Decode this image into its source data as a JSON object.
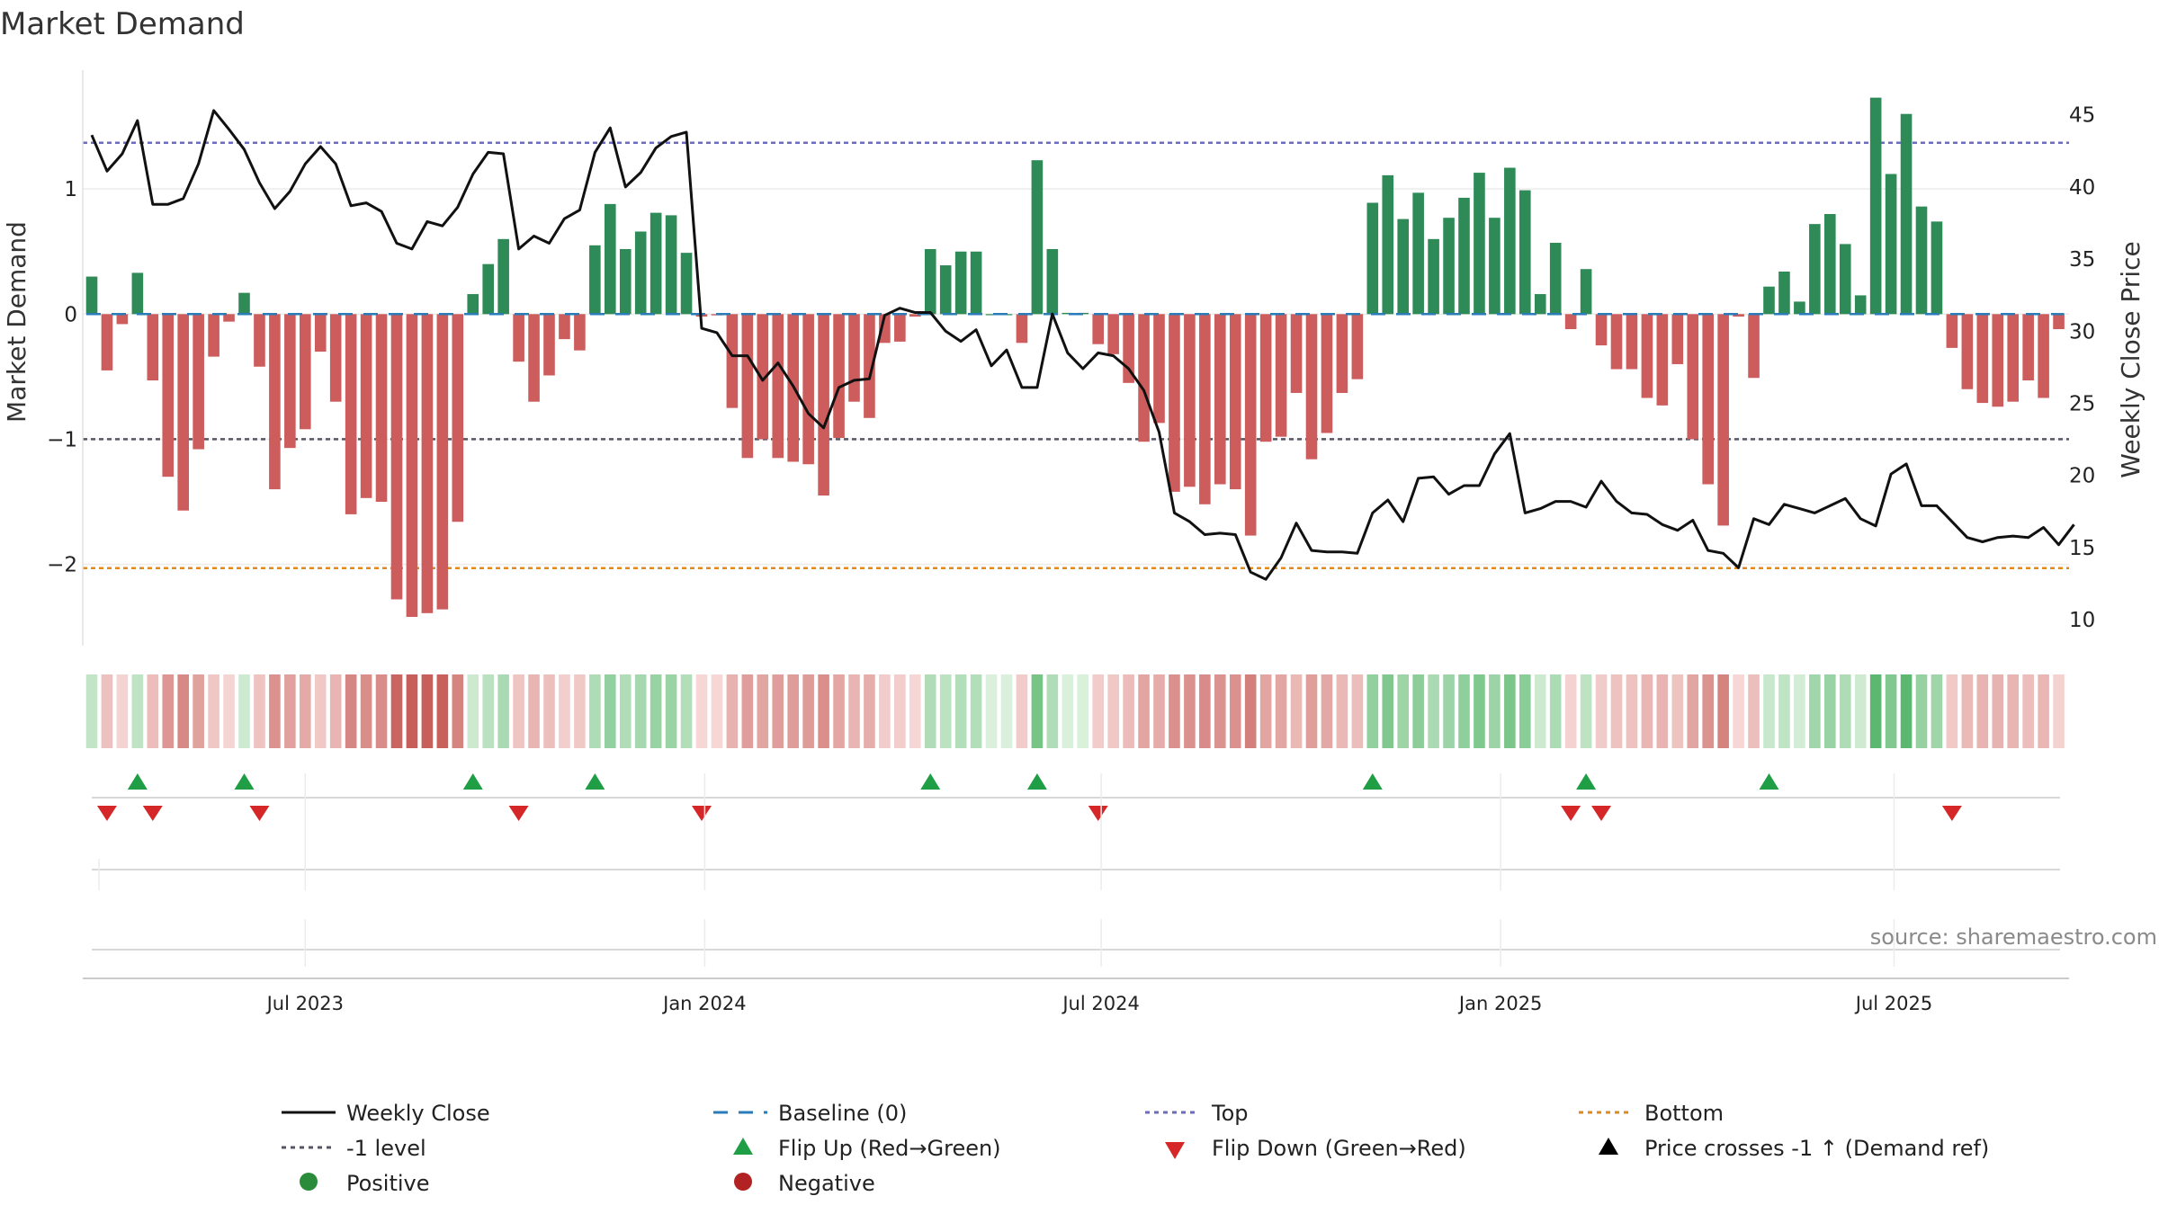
{
  "chart_data": {
    "type": "bar",
    "title": "Market Demand",
    "ylabel": "Market Demand",
    "y2label": "Weekly Close Price",
    "ylim": [
      -2.65,
      1.95
    ],
    "y2lim": [
      8.2,
      48.1
    ],
    "yticks": [
      "1",
      "0",
      "−1",
      "−2"
    ],
    "yticks_values": [
      1,
      0,
      -1,
      -2
    ],
    "y2ticks": [
      "45",
      "40",
      "35",
      "30",
      "25",
      "20",
      "15",
      "10"
    ],
    "y2ticks_values": [
      45,
      40,
      35,
      30,
      25,
      20,
      15,
      10
    ],
    "xticks": [
      "Jul 2023",
      "Jan 2024",
      "Jul 2024",
      "Jan 2025",
      "Jul 2025"
    ],
    "xticks_index": [
      14,
      40.2,
      66.2,
      92.4,
      118.2
    ],
    "levels": {
      "top": 1.37,
      "minus_one": -1.0,
      "bottom": -2.03,
      "baseline": 0
    },
    "demand": [
      0.3,
      -0.45,
      -0.08,
      0.33,
      -0.53,
      -1.3,
      -1.57,
      -1.08,
      -0.34,
      -0.06,
      0.17,
      -0.42,
      -1.4,
      -1.07,
      -0.92,
      -0.3,
      -0.7,
      -1.6,
      -1.47,
      -1.5,
      -2.28,
      -2.42,
      -2.39,
      -2.36,
      -1.66,
      0.16,
      0.4,
      0.6,
      -0.38,
      -0.7,
      -0.49,
      -0.2,
      -0.29,
      0.55,
      0.88,
      0.52,
      0.66,
      0.81,
      0.79,
      0.49,
      -0.02,
      -0.01,
      -0.75,
      -1.15,
      -1.0,
      -1.15,
      -1.18,
      -1.2,
      -1.45,
      -0.99,
      -0.7,
      -0.83,
      -0.23,
      -0.22,
      -0.02,
      0.52,
      0.39,
      0.5,
      0.5,
      0.0,
      0.0,
      -0.23,
      1.23,
      0.52,
      0.01,
      0.01,
      -0.24,
      -0.32,
      -0.55,
      -1.02,
      -0.87,
      -1.42,
      -1.38,
      -1.52,
      -1.36,
      -1.4,
      -1.77,
      -1.02,
      -0.98,
      -0.63,
      -1.16,
      -0.95,
      -0.63,
      -0.52,
      0.89,
      1.11,
      0.76,
      0.97,
      0.6,
      0.77,
      0.93,
      1.13,
      0.77,
      1.17,
      0.99,
      0.16,
      0.57,
      -0.12,
      0.36,
      -0.25,
      -0.44,
      -0.44,
      -0.67,
      -0.73,
      -0.4,
      -1.0,
      -1.36,
      -1.69,
      -0.02,
      -0.51,
      0.22,
      0.34,
      0.1,
      0.72,
      0.8,
      0.56,
      0.15,
      1.73,
      1.12,
      1.6,
      0.86,
      0.74,
      -0.27,
      -0.6,
      -0.71,
      -0.74,
      -0.7,
      -0.53,
      -0.67,
      -0.12
    ],
    "close": [
      43.6,
      41.1,
      42.3,
      44.6,
      38.8,
      38.8,
      39.2,
      41.6,
      45.3,
      44.0,
      42.6,
      40.3,
      38.5,
      39.7,
      41.6,
      42.8,
      41.6,
      38.7,
      38.9,
      38.3,
      36.1,
      35.7,
      37.6,
      37.3,
      38.6,
      40.9,
      42.4,
      42.3,
      35.7,
      36.6,
      36.1,
      37.8,
      38.4,
      42.4,
      44.1,
      40.0,
      41.0,
      42.7,
      43.5,
      43.8,
      30.2,
      29.9,
      28.3,
      28.3,
      26.6,
      27.8,
      26.2,
      24.3,
      23.3,
      26.1,
      26.6,
      26.7,
      31.1,
      31.6,
      31.3,
      31.3,
      30.0,
      29.3,
      30.1,
      27.6,
      28.7,
      26.1,
      26.1,
      31.2,
      28.5,
      27.4,
      28.5,
      28.3,
      27.4,
      25.9,
      23.0,
      17.4,
      16.8,
      15.9,
      16.0,
      15.9,
      13.3,
      12.8,
      14.3,
      16.7,
      14.8,
      14.7,
      14.7,
      14.6,
      17.4,
      18.3,
      16.8,
      19.8,
      19.9,
      18.7,
      19.3,
      19.3,
      21.5,
      22.9,
      17.4,
      17.7,
      18.2,
      18.2,
      17.8,
      19.6,
      18.2,
      17.4,
      17.3,
      16.6,
      16.2,
      16.9,
      14.8,
      14.6,
      13.6,
      17.0,
      16.6,
      18.0,
      17.7,
      17.4,
      17.9,
      18.4,
      17.0,
      16.5,
      20.1,
      20.8,
      17.9,
      17.9,
      16.8,
      15.7,
      15.4,
      15.7,
      15.8,
      15.7,
      16.4,
      15.2,
      16.6
    ],
    "legend": {
      "weekly_close": "Weekly Close",
      "baseline": "Baseline (0)",
      "top": "Top",
      "bottom": "Bottom",
      "minus_one": "-1 level",
      "flip_up": "Flip Up (Red→Green)",
      "flip_down": "Flip Down (Green→Red)",
      "price_cross": "Price crosses -1 ↑ (Demand ref)",
      "positive": "Positive",
      "negative": "Negative"
    },
    "colors": {
      "positive": "#2e8b57",
      "negative": "#cd5c5c",
      "close_line": "#111111",
      "baseline": "#2b7bb9",
      "top": "#6b6bbf",
      "minus_one": "#555566",
      "bottom": "#e08a1e",
      "flip_up": "#1f9e45",
      "flip_down": "#d62728",
      "positive_dot": "#2a8c3a",
      "negative_dot": "#b22222"
    },
    "source": "source: sharemaestro.com"
  }
}
